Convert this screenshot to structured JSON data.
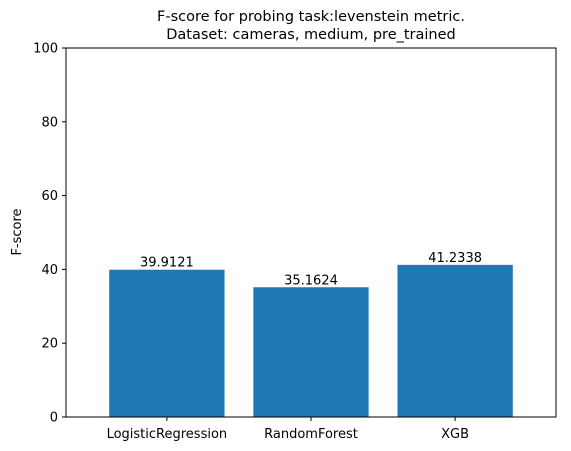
{
  "chart_data": {
    "type": "bar",
    "title": "F-score for probing task:levenstein metric.",
    "subtitle": "Dataset: cameras, medium, pre_trained",
    "xlabel": "",
    "ylabel": "F-score",
    "categories": [
      "LogisticRegression",
      "RandomForest",
      "XGB"
    ],
    "values": [
      39.9121,
      35.1624,
      41.2338
    ],
    "value_labels": [
      "39.9121",
      "35.1624",
      "41.2338"
    ],
    "ylim": [
      0,
      100
    ],
    "yticks": [
      0,
      20,
      40,
      60,
      80,
      100
    ],
    "ytick_labels": [
      "0",
      "20",
      "40",
      "60",
      "80",
      "100"
    ],
    "bar_color": "#1f77b4",
    "grid": false,
    "legend": "none"
  }
}
